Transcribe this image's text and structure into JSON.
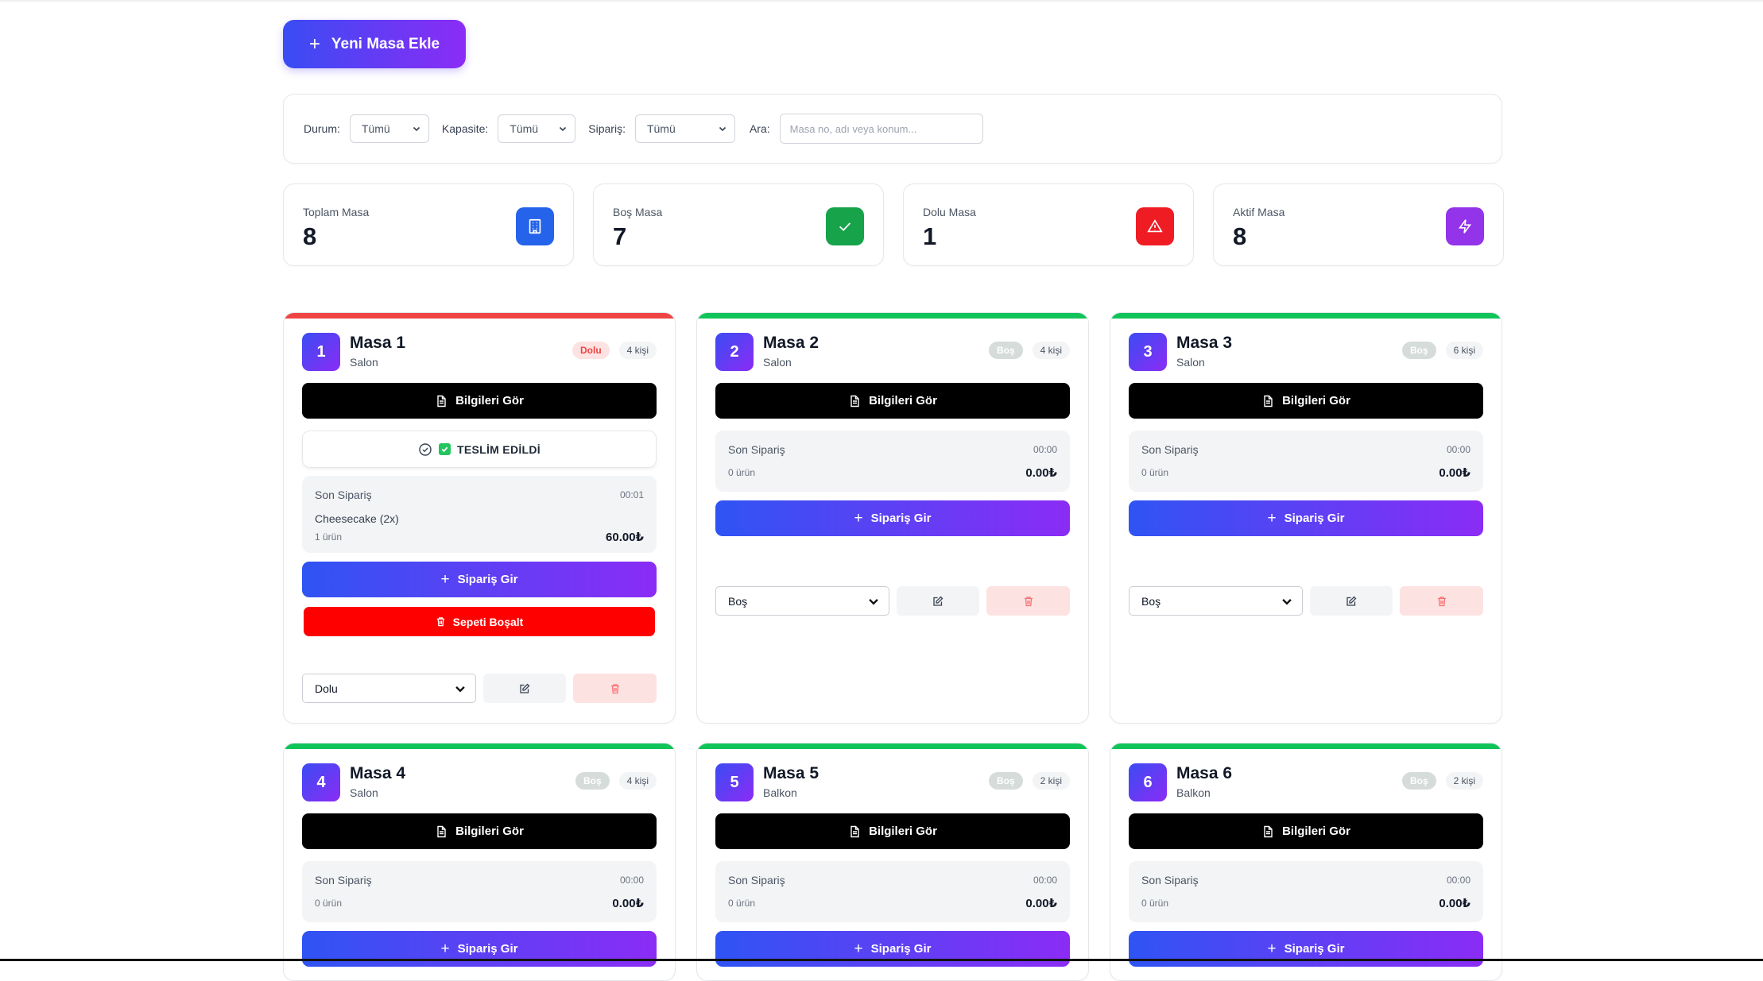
{
  "header": {
    "add_table_label": "Yeni Masa Ekle"
  },
  "filters": {
    "status_label": "Durum:",
    "status_value": "Tümü",
    "capacity_label": "Kapasite:",
    "capacity_value": "Tümü",
    "order_label": "Sipariş:",
    "order_value": "Tümü",
    "search_label": "Ara:",
    "search_placeholder": "Masa no, adı veya konum..."
  },
  "stats": [
    {
      "label": "Toplam Masa",
      "value": "8",
      "color": "#2563eb",
      "icon": "building-icon"
    },
    {
      "label": "Boş Masa",
      "value": "7",
      "color": "#16a34a",
      "icon": "check-icon"
    },
    {
      "label": "Dolu Masa",
      "value": "1",
      "color": "#ef1c24",
      "icon": "warning-icon"
    },
    {
      "label": "Aktif Masa",
      "value": "8",
      "color": "#9333ea",
      "icon": "lightning-icon"
    }
  ],
  "labels": {
    "info_button": "Bilgileri Gör",
    "order_button": "Sipariş Gir",
    "empty_cart_button": "Sepeti Boşalt",
    "last_order": "Son Sipariş",
    "delivered": "TESLİM EDİLDİ"
  },
  "tables": [
    {
      "number": "1",
      "name": "Masa 1",
      "location": "Salon",
      "status": "Dolu",
      "capacity": "4 kişi",
      "time": "00:01",
      "item": "Cheesecake (2x)",
      "count": "1 ürün",
      "total": "60.00₺",
      "select_value": "Dolu"
    },
    {
      "number": "2",
      "name": "Masa 2",
      "location": "Salon",
      "status": "Boş",
      "capacity": "4 kişi",
      "time": "00:00",
      "count": "0 ürün",
      "total": "0.00₺",
      "select_value": "Boş"
    },
    {
      "number": "3",
      "name": "Masa 3",
      "location": "Salon",
      "status": "Boş",
      "capacity": "6 kişi",
      "time": "00:00",
      "count": "0 ürün",
      "total": "0.00₺",
      "select_value": "Boş"
    },
    {
      "number": "4",
      "name": "Masa 4",
      "location": "Salon",
      "status": "Boş",
      "capacity": "4 kişi",
      "time": "00:00",
      "count": "0 ürün",
      "total": "0.00₺"
    },
    {
      "number": "5",
      "name": "Masa 5",
      "location": "Balkon",
      "status": "Boş",
      "capacity": "2 kişi",
      "time": "00:00",
      "count": "0 ürün",
      "total": "0.00₺"
    },
    {
      "number": "6",
      "name": "Masa 6",
      "location": "Balkon",
      "status": "Boş",
      "capacity": "2 kişi",
      "time": "00:00",
      "count": "0 ürün",
      "total": "0.00₺"
    }
  ]
}
